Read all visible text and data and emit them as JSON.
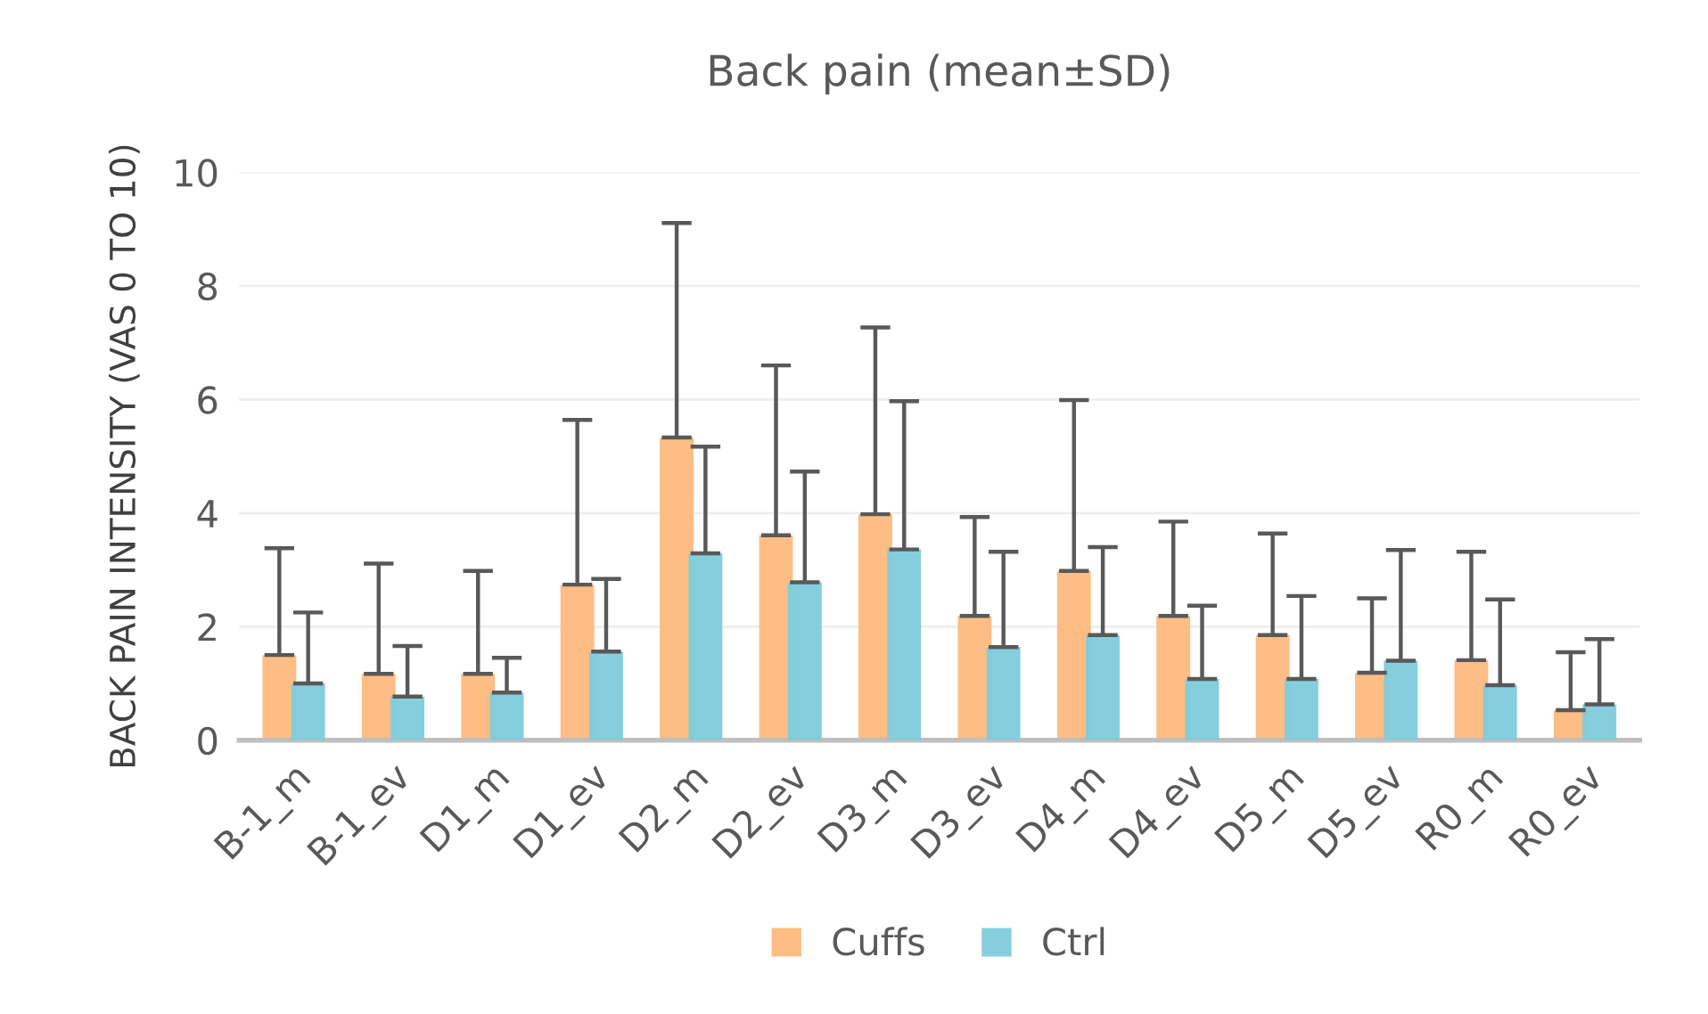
{
  "chart_data": {
    "type": "bar",
    "title": "Back pain (mean±SD)",
    "ylabel": "BACK PAIN INTENSITY (VAS 0 TO 10)",
    "categories": [
      "B-1_m",
      "B-1_ev",
      "D1_m",
      "D1_ev",
      "D2_m",
      "D2_ev",
      "D3_m",
      "D3_ev",
      "D4_m",
      "D4_ev",
      "D5_m",
      "D5_ev",
      "R0_m",
      "R0_ev"
    ],
    "series": [
      {
        "name": "Cuffs",
        "color": "#fdb97d",
        "values": [
          1.5,
          1.17,
          1.17,
          2.74,
          5.33,
          3.61,
          3.98,
          2.19,
          2.98,
          2.19,
          1.85,
          1.19,
          1.41,
          0.53
        ],
        "errors": [
          [
            1.5,
            3.38
          ],
          [
            1.17,
            3.11
          ],
          [
            1.17,
            2.98
          ],
          [
            2.74,
            5.64
          ],
          [
            5.33,
            9.11
          ],
          [
            3.61,
            6.6
          ],
          [
            3.98,
            7.27
          ],
          [
            2.19,
            3.93
          ],
          [
            2.98,
            5.99
          ],
          [
            2.19,
            3.85
          ],
          [
            1.85,
            3.64
          ],
          [
            1.19,
            2.5
          ],
          [
            1.41,
            3.32
          ],
          [
            0.53,
            1.55
          ]
        ]
      },
      {
        "name": "Ctrl",
        "color": "#7ecbdc",
        "values": [
          1.0,
          0.77,
          0.84,
          1.56,
          3.29,
          2.78,
          3.36,
          1.64,
          1.85,
          1.08,
          1.08,
          1.4,
          0.97,
          0.63
        ],
        "errors": [
          [
            1.0,
            2.25
          ],
          [
            0.77,
            1.66
          ],
          [
            0.84,
            1.45
          ],
          [
            1.56,
            2.84
          ],
          [
            3.29,
            5.17
          ],
          [
            2.78,
            4.73
          ],
          [
            3.36,
            5.97
          ],
          [
            1.64,
            3.32
          ],
          [
            1.85,
            3.4
          ],
          [
            1.08,
            2.37
          ],
          [
            1.08,
            2.54
          ],
          [
            1.4,
            3.35
          ],
          [
            0.97,
            2.48
          ],
          [
            0.63,
            1.78
          ]
        ]
      }
    ],
    "ylim": [
      0,
      10
    ],
    "yticks": [
      0,
      2,
      4,
      6,
      8,
      10
    ],
    "grid": "y",
    "legend": "bottom"
  }
}
